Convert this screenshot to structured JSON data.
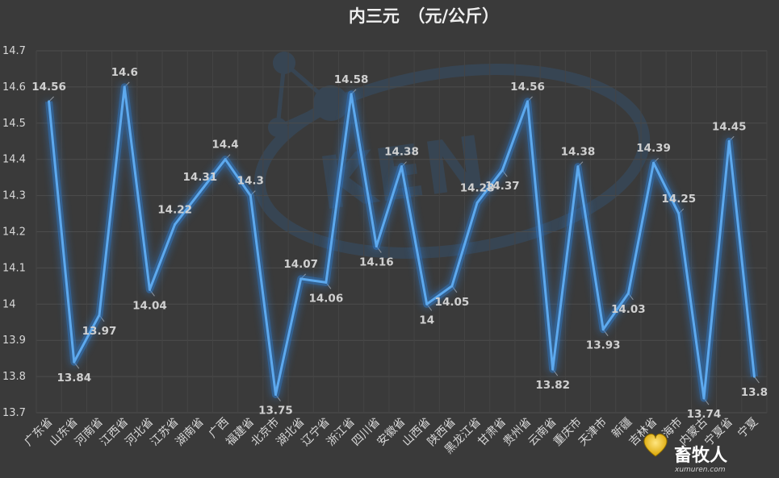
{
  "chart_data": {
    "type": "line",
    "title": "内三元　（元/公斤）",
    "xlabel": "",
    "ylabel": "",
    "ylim": [
      13.7,
      14.7
    ],
    "yticks": [
      "14.7",
      "14.6",
      "14.5",
      "14.4",
      "14.3",
      "14.2",
      "14.1",
      "14",
      "13.9",
      "13.8",
      "13.7"
    ],
    "grid": true,
    "legend": "none",
    "categories": [
      "广东省",
      "山东省",
      "河南省",
      "江西省",
      "河北省",
      "江苏省",
      "湖南省",
      "广西",
      "福建省",
      "北京市",
      "湖北省",
      "辽宁省",
      "浙江省",
      "四川省",
      "安徽省",
      "山西省",
      "陕西省",
      "黑龙江省",
      "甘肃省",
      "贵州省",
      "云南省",
      "重庆市",
      "天津市",
      "新疆",
      "吉林省",
      "上海市",
      "内蒙古",
      "宁夏省",
      "宁夏"
    ],
    "series": [
      {
        "values": [
          14.56,
          13.84,
          13.97,
          14.6,
          14.04,
          14.22,
          14.31,
          14.4,
          14.3,
          13.75,
          14.07,
          14.06,
          14.58,
          14.16,
          14.38,
          14.0,
          14.05,
          14.28,
          14.37,
          14.56,
          13.82,
          14.38,
          13.93,
          14.03,
          14.39,
          14.25,
          13.74,
          14.45,
          13.8
        ],
        "labels": [
          "14.56",
          "13.84",
          "13.97",
          "14.6",
          "14.04",
          "14.22",
          "14.31",
          "14.4",
          "14.3",
          "13.75",
          "14.07",
          "14.06",
          "14.58",
          "14.16",
          "14.38",
          "14",
          "14.05",
          "14.28",
          "14.37",
          "14.56",
          "13.82",
          "14.38",
          "13.93",
          "14.03",
          "14.39",
          "14.25",
          "13.74",
          "14.45",
          "13.8"
        ]
      }
    ],
    "colors": {
      "background": "#3a3a3a",
      "line": "#5da9ee",
      "glow": "#2f7fd6"
    }
  },
  "watermark": {
    "logo_text": "KEN",
    "brand_text": "畜牧人",
    "url_text": "xumuren.com"
  }
}
